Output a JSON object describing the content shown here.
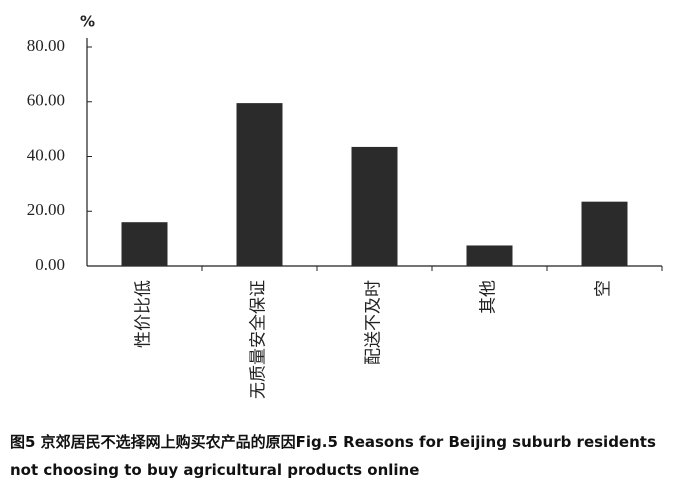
{
  "chart_data": {
    "type": "bar",
    "y_unit": "%",
    "categories": [
      "性价比低",
      "无质量安全保证",
      "配送不及时",
      "其他",
      "空"
    ],
    "values": [
      16,
      59.5,
      43.5,
      7.5,
      23.5
    ],
    "color": "#2b2b2b",
    "ylim": [
      0,
      80
    ],
    "yticks": [
      {
        "value": 0,
        "label": "0.00"
      },
      {
        "value": 20,
        "label": "20.00"
      },
      {
        "value": 40,
        "label": "40.00"
      },
      {
        "value": 60,
        "label": "60.00"
      },
      {
        "value": 80,
        "label": "80.00"
      }
    ],
    "grid": false,
    "caption": "图5 京郊居民不选择网上购买农产品的原因Fig.5 Reasons for Beijing suburb residents not choosing to buy agricultural products online"
  }
}
